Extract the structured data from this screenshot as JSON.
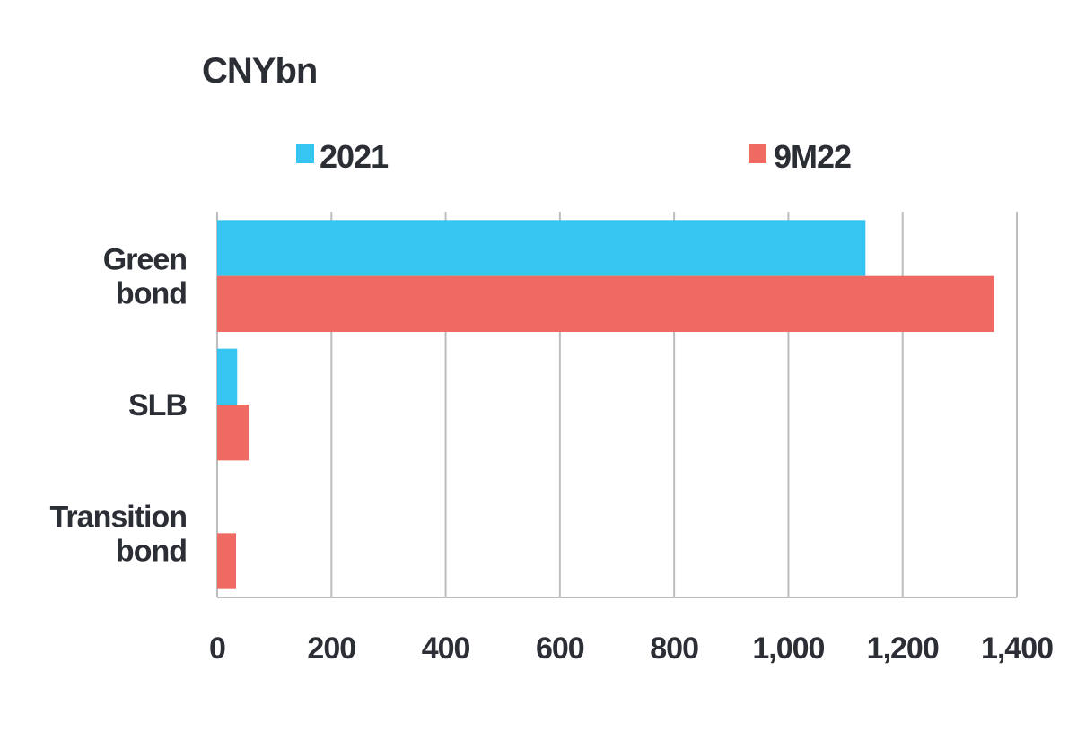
{
  "chart_data": {
    "type": "bar",
    "orientation": "horizontal",
    "unit_label": "CNYbn",
    "categories": [
      [
        "Green",
        "bond"
      ],
      [
        "SLB"
      ],
      [
        "Transition",
        "bond"
      ]
    ],
    "series": [
      {
        "name": "2021",
        "color": "#35c5f0",
        "values": [
          1135,
          35,
          0
        ]
      },
      {
        "name": "9M22",
        "color": "#ee6a63",
        "values": [
          1360,
          55,
          33
        ]
      }
    ],
    "xlim": [
      0,
      1400
    ],
    "ticks": [
      0,
      200,
      400,
      600,
      800,
      1000,
      1200,
      1400
    ],
    "tick_labels": [
      "0",
      "200",
      "400",
      "600",
      "800",
      "1,000",
      "1,200",
      "1,400"
    ],
    "grid": "vertical",
    "legend_position": "top"
  }
}
